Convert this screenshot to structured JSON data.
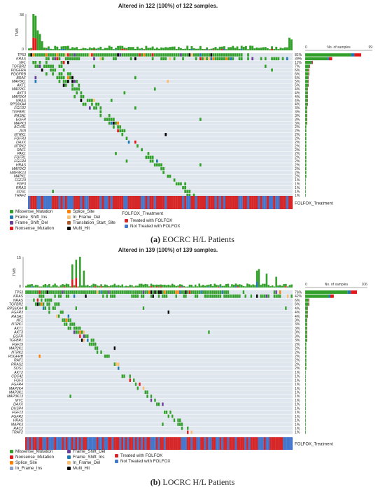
{
  "figure": {
    "captions": {
      "a": {
        "label": "(a)",
        "text": "EOCRC H/L Patients"
      },
      "b": {
        "label": "(b)",
        "text": "LOCRC H/L Patients"
      }
    }
  },
  "colors": {
    "Missense_Mutation": "#33a02c",
    "Frame_Shift_Ins": "#1f78b4",
    "Frame_Shift_Del": "#6a3d9a",
    "Nonsense_Mutation": "#e31a1c",
    "Splice_Site": "#ff7f00",
    "In_Frame_Del": "#fdbf6f",
    "In_Frame_Ins": "#8da0cb",
    "Translation_Start_Site": "#b15928",
    "Multi_Hit": "#000000",
    "Treated": "#d62728",
    "NotTreated": "#4477cc",
    "empty_cell": "#dfe6ee",
    "bar_grey": "#bdbdbd"
  },
  "chart_data": [
    {
      "type": "heatmap",
      "title": "Altered in 122 (100%) of 122 samples.",
      "n_samples": 122,
      "tmb_label": "TMB",
      "tmb_ylim": [
        0,
        38
      ],
      "tmb_ticks": [
        "38",
        "0"
      ],
      "right_axis_label": "No. of samples",
      "right_axis_ticks": [
        "0",
        "99"
      ],
      "right_axis_max": 99,
      "treatment_label": "FOLFOX_Treatment",
      "genes": [
        "TP53",
        "KRAS",
        "NF1",
        "TGFBR2",
        "PDGFRA",
        "PDGFRB",
        "BRAF",
        "MAP3K1",
        "AKT1",
        "MAP2K1",
        "AKT3",
        "MAP2K4",
        "NRAS",
        "RPS6KA4",
        "FGFR2",
        "TGFBR1",
        "RASA1",
        "EGFR",
        "MAPK3",
        "ACVR1",
        "JUN",
        "NTRK1",
        "FGFR3",
        "DAXX",
        "NTRK2",
        "RAF1",
        "PAK1",
        "FGFR1",
        "FGFR4",
        "HRAS",
        "MAP2K2",
        "MAP3K13",
        "MAPK1",
        "FGF19",
        "FGF3",
        "RRAS",
        "SOS1",
        "TRAF2"
      ],
      "percents": [
        "81%",
        "39%",
        "11%",
        "7%",
        "6%",
        "6%",
        "5%",
        "5%",
        "5%",
        "4%",
        "4%",
        "4%",
        "4%",
        "4%",
        "3%",
        "3%",
        "3%",
        "3%",
        "3%",
        "2%",
        "2%",
        "2%",
        "2%",
        "2%",
        "2%",
        "2%",
        "2%",
        "2%",
        "2%",
        "2%",
        "2%",
        "2%",
        "2%",
        "1%",
        "1%",
        "1%",
        "1%",
        "1%"
      ],
      "legend": {
        "items": [
          {
            "label": "Missense_Mutation",
            "color_key": "Missense_Mutation"
          },
          {
            "label": "Frame_Shift_Ins",
            "color_key": "Frame_Shift_Ins"
          },
          {
            "label": "Frame_Shift_Del",
            "color_key": "Frame_Shift_Del"
          },
          {
            "label": "Nonsense_Mutation",
            "color_key": "Nonsense_Mutation"
          },
          {
            "label": "Splice_Site",
            "color_key": "Splice_Site"
          },
          {
            "label": "In_Frame_Del",
            "color_key": "In_Frame_Del"
          },
          {
            "label": "Translation_Start_Site",
            "color_key": "Translation_Start_Site"
          },
          {
            "label": "Multi_Hit",
            "color_key": "Multi_Hit"
          }
        ],
        "treatment_title": "FOLFOX_Treatment",
        "treatment_items": [
          {
            "label": "Treated with FOLFOX",
            "color_key": "Treated"
          },
          {
            "label": "Not Treated with FOLFOX",
            "color_key": "NotTreated"
          }
        ]
      }
    },
    {
      "type": "heatmap",
      "title": "Altered in 139 (100%) of 139 samples.",
      "n_samples": 139,
      "tmb_label": "TMB",
      "tmb_ylim": [
        0,
        15
      ],
      "tmb_ticks": [
        "15",
        "0"
      ],
      "right_axis_label": "No. of samples",
      "right_axis_ticks": [
        "0",
        "106"
      ],
      "right_axis_max": 106,
      "treatment_label": "FOLFOX_Treatment",
      "genes": [
        "TP53",
        "KRAS",
        "NRAS",
        "TGFBR2",
        "RPS6KA4",
        "FGFR3",
        "RASA1",
        "NF1",
        "NTRK1",
        "AKT1",
        "AKT3",
        "EGFR",
        "TGFBR1",
        "FGF19",
        "MAP2K1",
        "NTRK2",
        "PDGFRB",
        "RAF1",
        "RRAS2",
        "SOS1",
        "AKT2",
        "CDC42",
        "FGF3",
        "FGFR4",
        "MAP2K4",
        "MAP3K1",
        "MAP3K13",
        "MYC",
        "DAXX",
        "DUSP4",
        "FGF13",
        "FGFR2",
        "HRAS",
        "MAPK3",
        "RAC2",
        "TRAF2"
      ],
      "percents": [
        "76%",
        "42%",
        "6%",
        "6%",
        "4%",
        "4%",
        "4%",
        "3%",
        "3%",
        "3%",
        "3%",
        "3%",
        "3%",
        "2%",
        "2%",
        "2%",
        "2%",
        "2%",
        "2%",
        "2%",
        "1%",
        "1%",
        "1%",
        "1%",
        "1%",
        "1%",
        "1%",
        "1%",
        "1%",
        "1%",
        "1%",
        "1%",
        "1%",
        "1%",
        "1%",
        "1%"
      ],
      "legend": {
        "items": [
          {
            "label": "Missense_Mutation",
            "color_key": "Missense_Mutation"
          },
          {
            "label": "Nonsense_Mutation",
            "color_key": "Nonsense_Mutation"
          },
          {
            "label": "Splice_Site",
            "color_key": "Splice_Site"
          },
          {
            "label": "In_Frame_Ins",
            "color_key": "In_Frame_Ins"
          },
          {
            "label": "Frame_Shift_Del",
            "color_key": "Frame_Shift_Del"
          },
          {
            "label": "Frame_Shift_Ins",
            "color_key": "Frame_Shift_Ins"
          },
          {
            "label": "In_Frame_Del",
            "color_key": "In_Frame_Del"
          },
          {
            "label": "Multi_Hit",
            "color_key": "Multi_Hit"
          }
        ],
        "treatment_title": "",
        "treatment_items": [
          {
            "label": "Treated with FOLFOX",
            "color_key": "Treated"
          },
          {
            "label": "Not Treated with FOLFOX",
            "color_key": "NotTreated"
          }
        ]
      }
    }
  ]
}
